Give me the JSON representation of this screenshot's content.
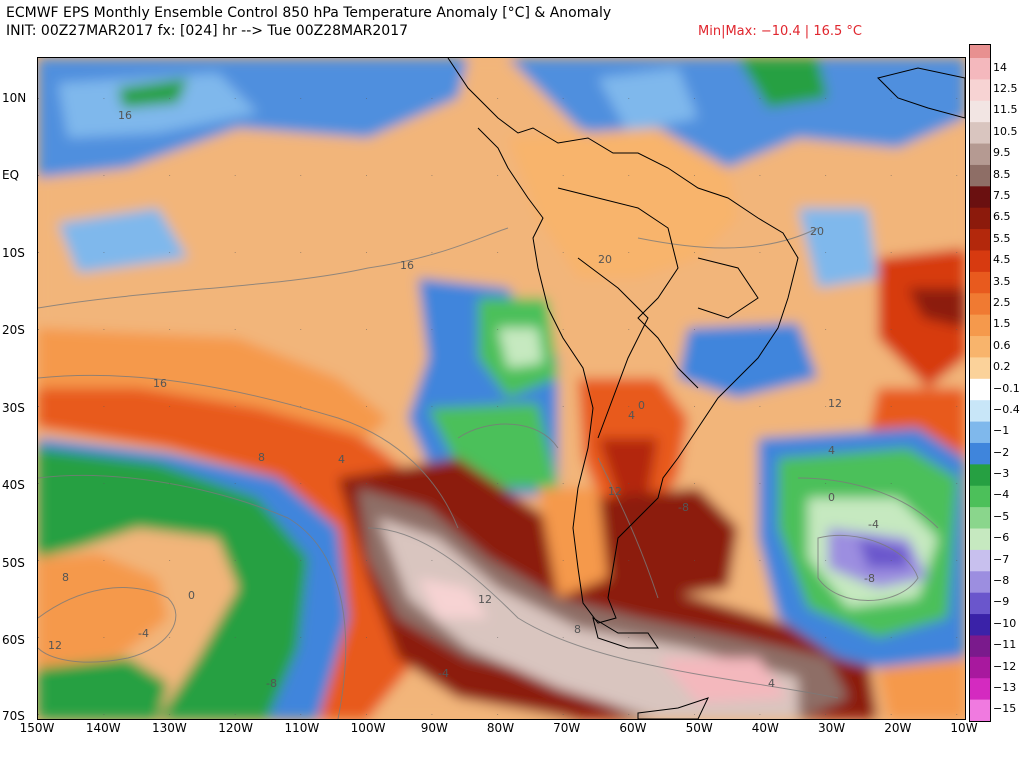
{
  "header": {
    "title": "ECMWF EPS Monthly Ensemble Control 850 hPa Temperature Anomaly [°C] & Anomaly",
    "init": "INIT: 00Z27MAR2017 fx: [024] hr --> Tue 00Z28MAR2017",
    "minmax": "Min|Max: −10.4 | 16.5 °C",
    "minmax_color": "#e0262e"
  },
  "axes": {
    "lat_labels": [
      "10N",
      "EQ",
      "10S",
      "20S",
      "30S",
      "40S",
      "50S",
      "60S",
      "70S"
    ],
    "lon_labels": [
      "150W",
      "140W",
      "130W",
      "120W",
      "110W",
      "100W",
      "90W",
      "80W",
      "70W",
      "60W",
      "50W",
      "40W",
      "30W",
      "20W",
      "10W"
    ]
  },
  "contour_labels": [
    "16",
    "16",
    "16",
    "20",
    "20",
    "12",
    "12",
    "12",
    "12",
    "8",
    "8",
    "8",
    "4",
    "4",
    "4",
    "4",
    "0",
    "0",
    "0",
    "-4",
    "-4",
    "-4",
    "-8",
    "-8",
    "-8"
  ],
  "legend": {
    "levels": [
      {
        "label": "14",
        "color": "#f4b8bd"
      },
      {
        "label": "12.5",
        "color": "#f7d3d3"
      },
      {
        "label": "11.5",
        "color": "#f2e5e3"
      },
      {
        "label": "10.5",
        "color": "#d9c5bf"
      },
      {
        "label": "9.5",
        "color": "#b59a92"
      },
      {
        "label": "8.5",
        "color": "#8e6e66"
      },
      {
        "label": "7.5",
        "color": "#6a1010"
      },
      {
        "label": "6.5",
        "color": "#8c1a0c"
      },
      {
        "label": "5.5",
        "color": "#b3280c"
      },
      {
        "label": "4.5",
        "color": "#d73a10"
      },
      {
        "label": "3.5",
        "color": "#e85a1e"
      },
      {
        "label": "2.5",
        "color": "#f07a32"
      },
      {
        "label": "1.5",
        "color": "#f5994c"
      },
      {
        "label": "0.6",
        "color": "#f8b46c"
      },
      {
        "label": "0.2",
        "color": "#fbd29a"
      },
      {
        "label": "−0.1",
        "color": "#ffffff"
      },
      {
        "label": "−0.4",
        "color": "#c8e6f8"
      },
      {
        "label": "−1",
        "color": "#7fb8ec"
      },
      {
        "label": "−2",
        "color": "#3f85dc"
      },
      {
        "label": "−3",
        "color": "#26a042"
      },
      {
        "label": "−4",
        "color": "#4cc05a"
      },
      {
        "label": "−5",
        "color": "#8ad68c"
      },
      {
        "label": "−6",
        "color": "#c6e9c0"
      },
      {
        "label": "−7",
        "color": "#c8c0ee"
      },
      {
        "label": "−8",
        "color": "#9c8ee0"
      },
      {
        "label": "−9",
        "color": "#6a56cc"
      },
      {
        "label": "−10",
        "color": "#3a22a8"
      },
      {
        "label": "−11",
        "color": "#7a1a8c"
      },
      {
        "label": "−12",
        "color": "#a8189e"
      },
      {
        "label": "−13",
        "color": "#d42ac0"
      },
      {
        "label": "−15",
        "color": "#f07ae0"
      }
    ],
    "top_cap_color": "#e89090"
  }
}
